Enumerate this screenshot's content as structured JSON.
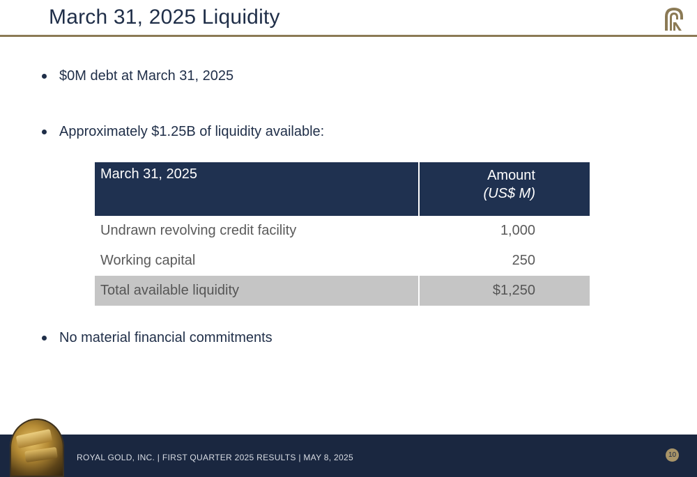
{
  "header": {
    "title": "March 31, 2025 Liquidity"
  },
  "bullets": [
    "$0M debt at March 31, 2025",
    "Approximately $1.25B of liquidity available:",
    "No material financial commitments"
  ],
  "table": {
    "header_label": "March 31, 2025",
    "header_amount": "Amount",
    "header_unit": "(US$ M)",
    "rows": [
      {
        "label": "Undrawn revolving credit facility",
        "amount": "1,000"
      },
      {
        "label": "Working capital",
        "amount": "250"
      }
    ],
    "total": {
      "label": "Total available liquidity",
      "amount": "$1,250"
    }
  },
  "footer": {
    "text": "ROYAL GOLD, INC.   |   FIRST QUARTER 2025 RESULTS   |   MAY 8, 2025",
    "page_number": "10"
  },
  "colors": {
    "navy": "#1f3150",
    "gold_rule": "#8b7a55",
    "total_row": "#c5c5c5"
  }
}
